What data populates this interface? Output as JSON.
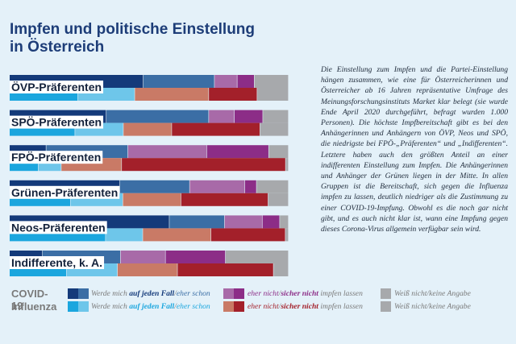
{
  "title": {
    "line1": "Impfen und politische Einstellung",
    "line2": "in Österreich"
  },
  "description": "Die Einstellung zum Impfen und die Partei-Einstellung hängen zusammen, wie eine für Österreicherinnen und Österreicher ab 16 Jahren repräsentative Umfrage des Meinungsforschungsinstituts Market klar belegt (sie wurde Ende April 2020 durchgeführt, befragt wurden 1.000 Personen). Die höchste Impfbereitschaft gibt es bei den Anhängerinnen und Anhängern von ÖVP, Neos und SPÖ, die niedrigste bei FPÖ-„Präferenten“ und „Indifferenten“. Letztere haben auch den größten Anteil an einer indifferenten Einstellung zum Impfen. Die Anhängerinnen und Anhänger der Grünen liegen in der Mitte. In allen Gruppen ist die Bereitschaft, sich gegen die Influenza impfen zu lassen, deutlich niedriger als die Zustimmung zu einer COVID-19-Impfung. Obwohl es die noch gar nicht gibt, und es auch nicht klar ist, wann eine Impfung gegen dieses Corona-Virus allgemein verfügbar sein wird.",
  "legend": {
    "covid_label": "COVID-19",
    "flu_label": "Influenza",
    "yes_prefix": "Werde mich ",
    "yes_strong": "auf jeden Fall",
    "sep": "/",
    "yes_weak": "eher schon",
    "no_weak": "eher nicht",
    "no_strong": "sicher nicht",
    "no_suffix": " impfen lassen",
    "dontknow": "Weiß nicht/keine Angabe"
  },
  "colors": {
    "covid": [
      "#143a7a",
      "#3b6ea5",
      "#a86aa8",
      "#8c2d87",
      "#a7a9ac"
    ],
    "flu": [
      "#1ba6de",
      "#6ec6ea",
      "#c97a66",
      "#a3202a",
      "#a7a9ac"
    ]
  },
  "chart_data": {
    "type": "bar",
    "orientation": "horizontal-stacked",
    "title": "Impfen und politische Einstellung in Österreich",
    "segments": [
      "auf jeden Fall",
      "eher schon",
      "eher nicht",
      "sicher nicht",
      "Weiß nicht/keine Angabe"
    ],
    "groups": [
      {
        "name": "ÖVP-Präferenten",
        "covid": [
          47,
          25,
          8,
          6,
          12
        ],
        "influenza": [
          24,
          20,
          26,
          17,
          11
        ]
      },
      {
        "name": "SPÖ-Präferenten",
        "covid": [
          34,
          36,
          9,
          10,
          9
        ],
        "influenza": [
          23,
          17,
          17,
          31,
          10
        ]
      },
      {
        "name": "FPÖ-Präferenten",
        "covid": [
          13,
          29,
          28,
          22,
          7
        ],
        "influenza": [
          10,
          8,
          21,
          57,
          1
        ]
      },
      {
        "name": "Grünen-Präferenten",
        "covid": [
          38,
          24,
          19,
          4,
          11
        ],
        "influenza": [
          21,
          18,
          20,
          30,
          7
        ]
      },
      {
        "name": "Neos-Präferenten",
        "covid": [
          55,
          19,
          13,
          6,
          3
        ],
        "influenza": [
          31,
          12,
          22,
          24,
          1
        ]
      },
      {
        "name": "Indifferente, k. A.",
        "covid": [
          11,
          26,
          15,
          20,
          21
        ],
        "influenza": [
          19,
          17,
          20,
          32,
          5
        ]
      }
    ],
    "xlim": [
      0,
      100
    ]
  }
}
